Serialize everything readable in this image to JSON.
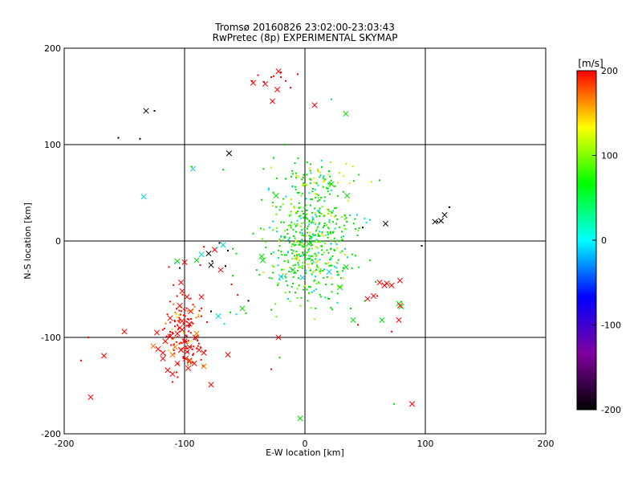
{
  "chart_data": {
    "type": "scatter",
    "title": "Tromsø 20160826 23:02:00-23:03:43",
    "subtitle": "RwPretec (8p) EXPERIMENTAL SKYMAP",
    "xlabel": "E-W location [km]",
    "ylabel": "N-S location [km]",
    "xlim": [
      -200,
      200
    ],
    "ylim": [
      -200,
      200
    ],
    "xticks": [
      "-200",
      "-100",
      "0",
      "100",
      "200"
    ],
    "yticks": [
      "-200",
      "-100",
      "0",
      "100",
      "200"
    ],
    "grid": true,
    "colorbar": {
      "label": "[m/s]",
      "range": [
        -200,
        200
      ],
      "ticks": [
        "200",
        "100",
        "0",
        "-100",
        "-200"
      ],
      "colors": [
        "#000000",
        "#8000a0",
        "#0000ff",
        "#00ffff",
        "#00ff00",
        "#ffff00",
        "#ff0000"
      ]
    },
    "series": [
      {
        "marker": "x",
        "points": [
          [
            -43,
            164
          ],
          [
            -33,
            163
          ],
          [
            -23,
            157
          ],
          [
            -27,
            145
          ],
          [
            8,
            141
          ],
          [
            -22,
            176
          ],
          [
            34,
            132
          ],
          [
            -132,
            135
          ],
          [
            -63,
            91
          ],
          [
            -93,
            75
          ],
          [
            -134,
            46
          ],
          [
            -24,
            47
          ],
          [
            22,
            59
          ],
          [
            35,
            47
          ],
          [
            108,
            20
          ],
          [
            113,
            21
          ],
          [
            116,
            27
          ],
          [
            67,
            18
          ],
          [
            -100,
            -22
          ],
          [
            -106,
            -21
          ],
          [
            -86,
            -14
          ],
          [
            -80,
            -13
          ],
          [
            -75,
            -9
          ],
          [
            -90,
            -20
          ],
          [
            -36,
            -16
          ],
          [
            -68,
            -4
          ],
          [
            -70,
            -30
          ],
          [
            -103,
            -43
          ],
          [
            -78,
            -25
          ],
          [
            34,
            -27
          ],
          [
            29,
            -48
          ],
          [
            20,
            -32
          ],
          [
            62,
            -43
          ],
          [
            66,
            -46
          ],
          [
            72,
            -46
          ],
          [
            79,
            -41
          ],
          [
            57,
            -57
          ],
          [
            78,
            -65
          ],
          [
            80,
            -68
          ],
          [
            52,
            -60
          ],
          [
            40,
            -82
          ],
          [
            64,
            -82
          ],
          [
            78,
            -82
          ],
          [
            -104,
            -67
          ],
          [
            -95,
            -73
          ],
          [
            -112,
            -80
          ],
          [
            -106,
            -96
          ],
          [
            -102,
            -92
          ],
          [
            -100,
            -104
          ],
          [
            -96,
            -110
          ],
          [
            -108,
            -110
          ],
          [
            -103,
            -113
          ],
          [
            -110,
            -118
          ],
          [
            -98,
            -115
          ],
          [
            -106,
            -127
          ],
          [
            -99,
            -122
          ],
          [
            -122,
            -112
          ],
          [
            -114,
            -134
          ],
          [
            -118,
            -122
          ],
          [
            -96,
            -124
          ],
          [
            -92,
            -127
          ],
          [
            -88,
            -113
          ],
          [
            -84,
            -116
          ],
          [
            -90,
            -96
          ],
          [
            -96,
            -86
          ],
          [
            -102,
            -83
          ],
          [
            -112,
            -99
          ],
          [
            -116,
            -104
          ],
          [
            -91,
            -100
          ],
          [
            -104,
            -90
          ],
          [
            -123,
            -95
          ],
          [
            -126,
            -109
          ],
          [
            -118,
            -116
          ],
          [
            -150,
            -94
          ],
          [
            -178,
            -162
          ],
          [
            -167,
            -119
          ],
          [
            -110,
            -138
          ],
          [
            -103,
            -113
          ],
          [
            -72,
            -78
          ],
          [
            -102,
            -52
          ],
          [
            -78,
            -149
          ],
          [
            -84,
            -130
          ],
          [
            -97,
            -132
          ],
          [
            -96,
            -125
          ],
          [
            -98,
            -58
          ],
          [
            -86,
            -58
          ],
          [
            -64,
            -118
          ],
          [
            -22,
            -100
          ],
          [
            -4,
            -184
          ],
          [
            -52,
            -70
          ],
          [
            -35,
            -20
          ],
          [
            -20,
            -37
          ],
          [
            -2,
            -38
          ],
          [
            3,
            -3
          ],
          [
            -10,
            -30
          ],
          [
            89,
            -169
          ],
          [
            79,
            -67
          ],
          [
            68,
            -44
          ]
        ]
      },
      {
        "marker": "dot",
        "points": [
          [
            -39,
            172
          ],
          [
            -28,
            170
          ],
          [
            -34,
            165
          ],
          [
            -20,
            170
          ],
          [
            -26,
            171
          ],
          [
            -12,
            159
          ],
          [
            -16,
            166
          ],
          [
            -20,
            175
          ],
          [
            -44,
            166
          ],
          [
            -6,
            173
          ],
          [
            22,
            147
          ],
          [
            -125,
            135
          ],
          [
            -155,
            107
          ],
          [
            -137,
            106
          ],
          [
            -94,
            77
          ],
          [
            -68,
            74
          ],
          [
            -20,
            5
          ],
          [
            -2,
            8
          ],
          [
            5,
            -3
          ],
          [
            120,
            35
          ],
          [
            110,
            20
          ],
          [
            97,
            -5
          ],
          [
            62,
            63
          ],
          [
            48,
            14
          ],
          [
            51,
            19
          ],
          [
            54,
            22
          ],
          [
            -57,
            -13
          ],
          [
            -60,
            -8
          ],
          [
            -64,
            -10
          ],
          [
            -77,
            -21
          ],
          [
            -104,
            -28
          ],
          [
            -113,
            -27
          ],
          [
            -108,
            -23
          ],
          [
            -66,
            -26
          ],
          [
            -61,
            -45
          ],
          [
            -73,
            -7
          ],
          [
            -71,
            -2
          ],
          [
            -84,
            -6
          ],
          [
            -87,
            -25
          ],
          [
            -56,
            -56
          ],
          [
            -49,
            -75
          ],
          [
            -47,
            -62
          ],
          [
            -57,
            -76
          ],
          [
            -62,
            -74
          ],
          [
            -67,
            -86
          ],
          [
            -78,
            -73
          ],
          [
            -86,
            -78
          ],
          [
            -93,
            -66
          ],
          [
            -60,
            -36
          ],
          [
            -14,
            -60
          ],
          [
            -3,
            -59
          ],
          [
            20,
            -60
          ],
          [
            27,
            -64
          ],
          [
            38,
            -70
          ],
          [
            60,
            -57
          ],
          [
            80,
            -63
          ],
          [
            44,
            -87
          ],
          [
            72,
            -94
          ],
          [
            74,
            -169
          ],
          [
            -28,
            -133
          ],
          [
            -21,
            -121
          ],
          [
            -180,
            -100
          ],
          [
            -186,
            -124
          ]
        ]
      }
    ]
  }
}
